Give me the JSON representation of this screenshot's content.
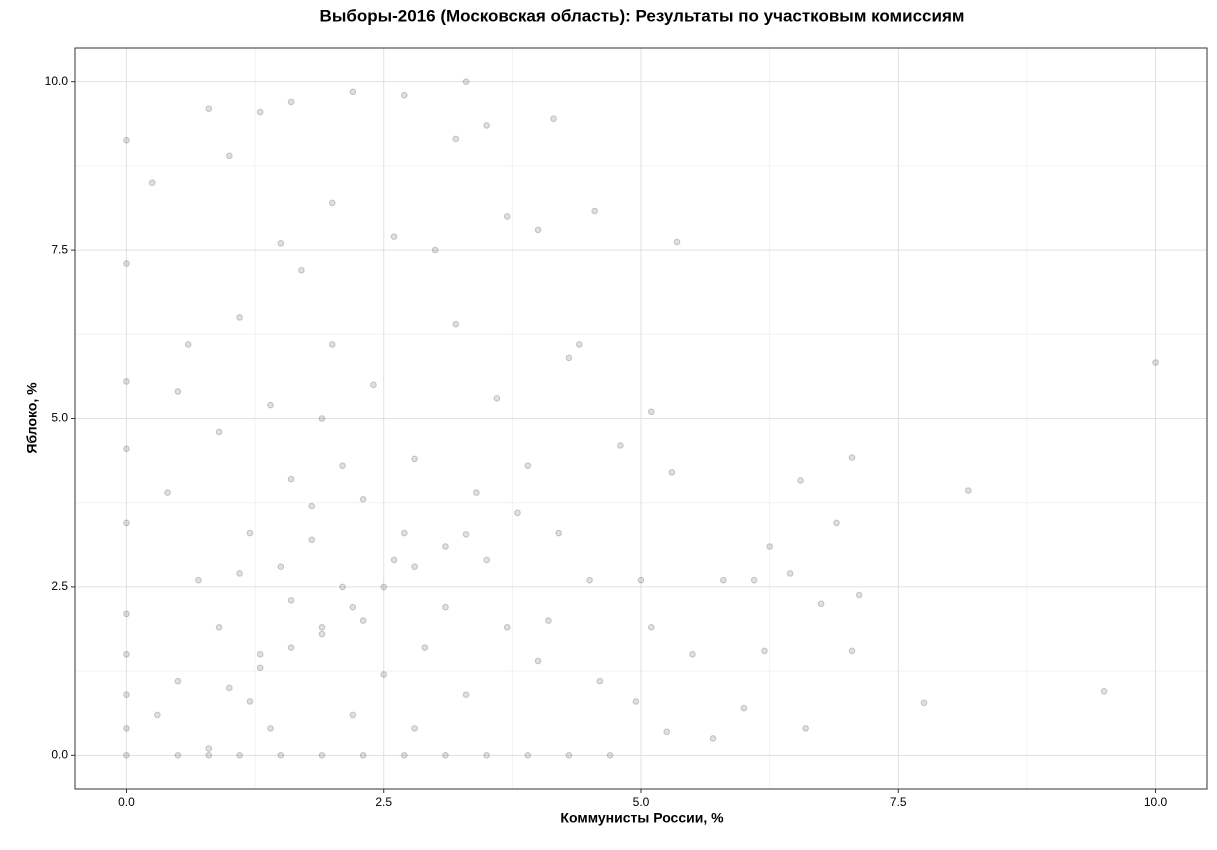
{
  "chart_data": {
    "type": "scatter",
    "title": "Выборы-2016 (Московская область): Результаты по участковым комиссиям",
    "x_label": "Коммунисты России, %",
    "y_label": "Яблоко, %",
    "color": "#000000",
    "stroke": "#555555",
    "alpha": 0.12,
    "xlim": [
      -0.5,
      10.5
    ],
    "ylim": [
      -0.5,
      10.5
    ],
    "xticks": [
      {
        "value": 0,
        "label": "0.0"
      },
      {
        "value": 2.5,
        "label": "2.5"
      },
      {
        "value": 5,
        "label": "5.0"
      },
      {
        "value": 7.5,
        "label": "7.5"
      },
      {
        "value": 10,
        "label": "10.0"
      }
    ],
    "yticks": [
      {
        "value": 0,
        "label": "0.0"
      },
      {
        "value": 2.5,
        "label": "2.5"
      },
      {
        "value": 5,
        "label": "5.0"
      },
      {
        "value": 7.5,
        "label": "7.5"
      },
      {
        "value": 10,
        "label": "10.0"
      }
    ],
    "grid": true,
    "minor_grid": true,
    "x": [
      1.5,
      1.8,
      2.1,
      1.6,
      2.3,
      1.9,
      2.6,
      1.2,
      2.8,
      1.4,
      2.0,
      1.7,
      1.1,
      2.4,
      0.9,
      1.3,
      2.5,
      3.1,
      2.9,
      3.4,
      0.7,
      0.6,
      1.0,
      1.6,
      2.2,
      1.3,
      2.7,
      0.8,
      2.0,
      1.5,
      2.6,
      3.0,
      3.2,
      3.6,
      3.9,
      4.2,
      4.5,
      3.7,
      4.0,
      3.3,
      2.2,
      1.4,
      0.8,
      0.5,
      0.3,
      0.4,
      0.25,
      0.5,
      1.9,
      2.1,
      1.8,
      1.6,
      2.3,
      2.7,
      1.1,
      0.9,
      1.2,
      2.8,
      3.5,
      3.8,
      4.1,
      4.6,
      5.0,
      5.1,
      4.3,
      4.8,
      5.1,
      3.5,
      3.2,
      4.4,
      4.0,
      3.7,
      5.3,
      5.5,
      5.8,
      6.0,
      6.2,
      6.25,
      6.1,
      5.7,
      6.6,
      5.25,
      4.95,
      1.0,
      1.3,
      1.6,
      1.9,
      2.2,
      2.5,
      2.8,
      3.1,
      3.3,
      0.5,
      0.8,
      1.1,
      1.5,
      1.9,
      2.3,
      2.7,
      3.1,
      3.5,
      3.9,
      4.3,
      4.7,
      0,
      0,
      0,
      0,
      0,
      0,
      0,
      0,
      0,
      0,
      10.0,
      9.5,
      8.18,
      7.75,
      7.05,
      7.12,
      6.9,
      6.55,
      5.35,
      4.55,
      4.15,
      3.3,
      7.05,
      6.45,
      6.75
    ],
    "values": [
      2.8,
      3.2,
      2.5,
      4.1,
      3.8,
      1.8,
      2.9,
      3.3,
      4.4,
      5.2,
      6.1,
      7.2,
      6.5,
      5.5,
      4.8,
      1.5,
      1.2,
      2.2,
      1.6,
      3.9,
      2.6,
      6.1,
      8.9,
      9.7,
      9.85,
      9.55,
      9.8,
      9.6,
      8.2,
      7.6,
      7.7,
      7.5,
      6.4,
      5.3,
      4.3,
      3.3,
      2.6,
      1.9,
      1.4,
      0.9,
      0.6,
      0.4,
      0.1,
      1.1,
      0.6,
      3.9,
      8.5,
      5.4,
      5.0,
      4.3,
      3.7,
      2.3,
      2.0,
      3.3,
      2.7,
      1.9,
      0.8,
      0.4,
      2.9,
      3.6,
      2.0,
      1.1,
      2.6,
      1.9,
      5.9,
      4.6,
      5.1,
      9.35,
      9.15,
      6.1,
      7.8,
      8.0,
      4.2,
      1.5,
      2.6,
      0.7,
      1.55,
      3.1,
      2.6,
      0.25,
      0.4,
      0.35,
      0.8,
      1.0,
      1.3,
      1.6,
      1.9,
      2.2,
      2.5,
      2.8,
      3.1,
      3.28,
      0,
      0,
      0,
      0,
      0,
      0,
      0,
      0,
      0,
      0,
      0,
      0,
      0,
      9.13,
      7.3,
      5.55,
      4.55,
      3.45,
      2.1,
      1.5,
      0.9,
      0.4,
      5.83,
      0.95,
      3.93,
      0.78,
      4.42,
      2.38,
      3.45,
      4.08,
      7.62,
      8.08,
      9.45,
      10.0,
      1.55,
      2.7,
      2.25
    ]
  }
}
